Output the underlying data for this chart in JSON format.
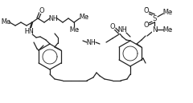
{
  "bg_color": "#ffffff",
  "lc": "#222222",
  "lw": 0.9,
  "figsize": [
    2.4,
    1.29
  ],
  "dpi": 100,
  "xlim": [
    0,
    240
  ],
  "ylim": [
    0,
    129
  ]
}
